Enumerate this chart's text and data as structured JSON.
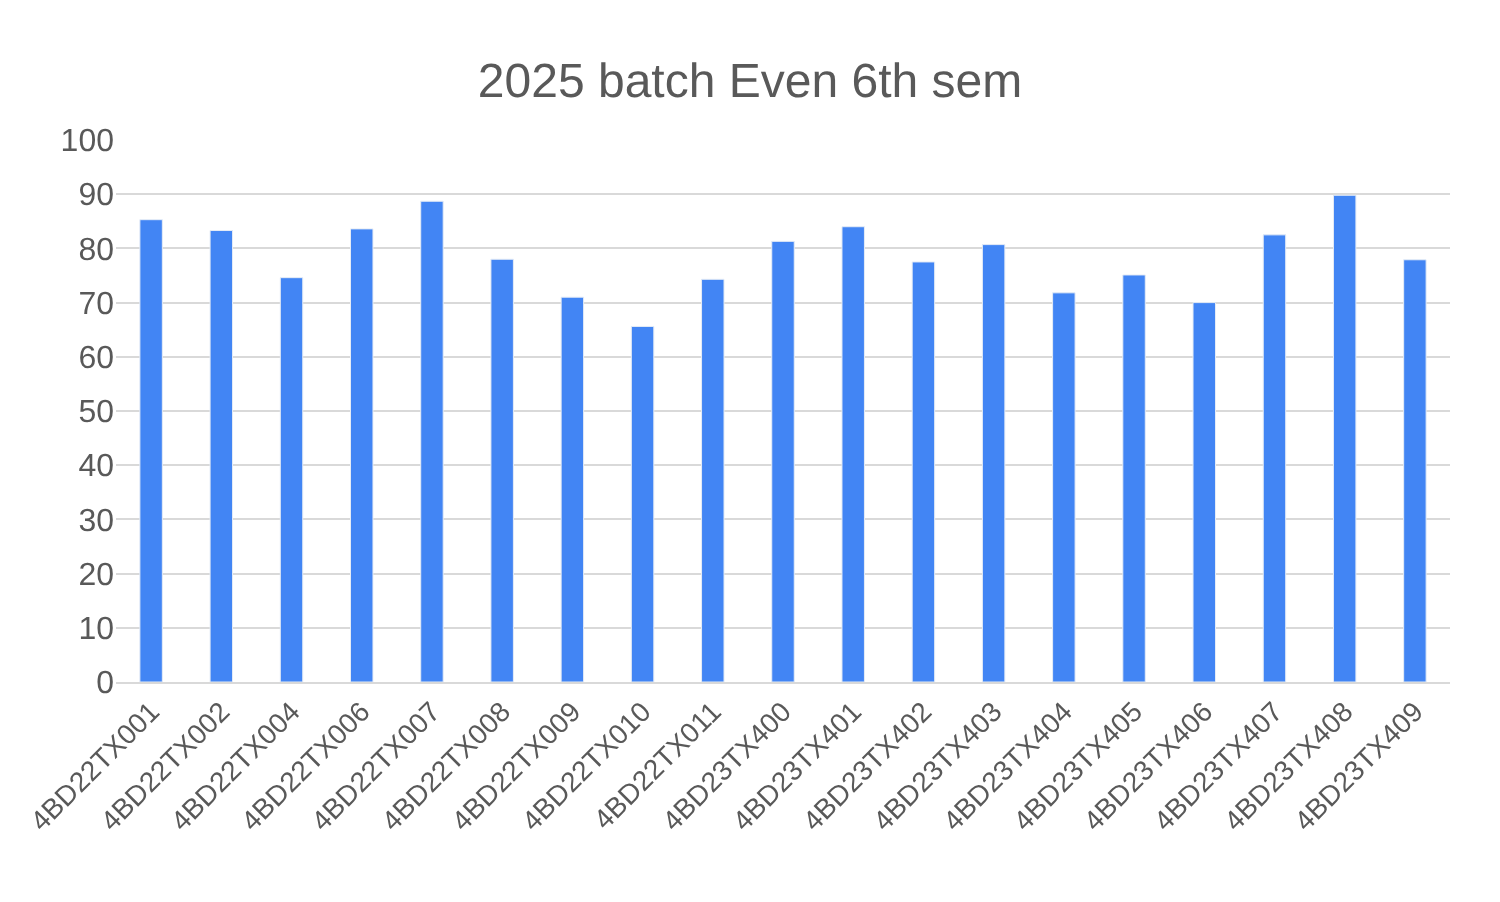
{
  "chart_data": {
    "type": "bar",
    "title": "2025 batch Even 6th sem",
    "categories": [
      "4BD22TX001",
      "4BD22TX002",
      "4BD22TX004",
      "4BD22TX006",
      "4BD22TX007",
      "4BD22TX008",
      "4BD22TX009",
      "4BD22TX010",
      "4BD22TX011",
      "4BD23TX400",
      "4BD23TX401",
      "4BD23TX402",
      "4BD23TX403",
      "4BD23TX404",
      "4BD23TX405",
      "4BD23TX406",
      "4BD23TX407",
      "4BD23TX408",
      "4BD23TX409"
    ],
    "values": [
      85.3,
      83.3,
      74.6,
      83.6,
      88.7,
      78,
      71,
      65.6,
      74.3,
      81.3,
      84,
      77.5,
      80.7,
      71.8,
      75.1,
      70,
      82.5,
      89.8,
      77.9
    ],
    "color": "#4285f4",
    "ylim": [
      0,
      100
    ],
    "yticks": [
      0,
      10,
      20,
      30,
      40,
      50,
      60,
      70,
      80,
      90,
      100
    ],
    "grid": "y"
  }
}
